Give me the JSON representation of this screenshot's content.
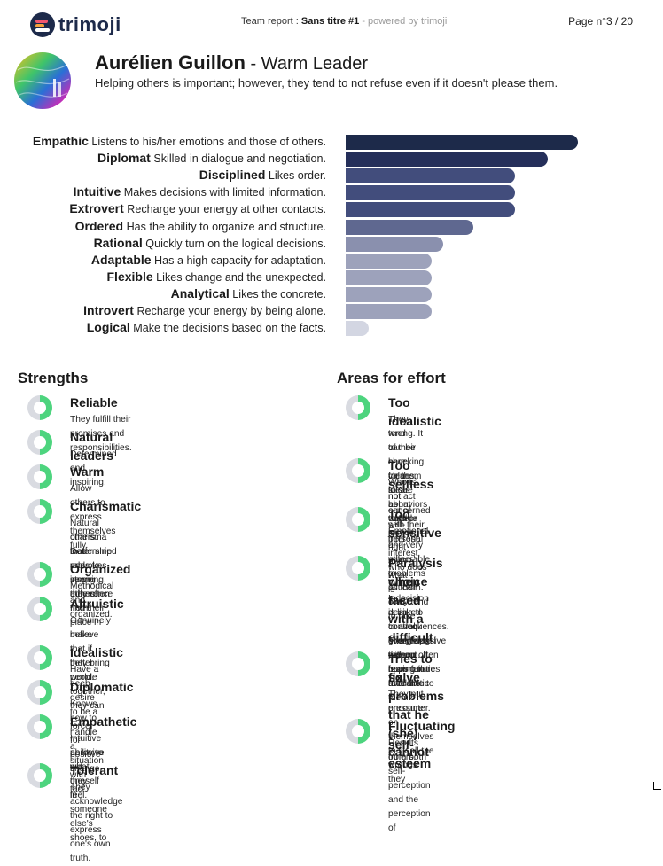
{
  "header": {
    "logo_text": "trimoji",
    "report_prefix": "Team report : ",
    "report_title": "Sans titre #1",
    "report_suffix": " - powered by trimoji",
    "page_number": "Page n°3 / 20"
  },
  "person": {
    "name": "Aurélien Guillon",
    "type": " - Warm Leader",
    "tagline": "Helping others is important; however, they tend to not refuse even if it doesn't please them."
  },
  "traits": [
    {
      "name": "Empathic",
      "desc": "Listens to his/her emotions and those of others.",
      "value": 100,
      "color": "#1d2a4a"
    },
    {
      "name": "Diplomat",
      "desc": "Skilled in dialogue and negotiation.",
      "value": 87,
      "color": "#252f5a"
    },
    {
      "name": "Disciplined",
      "desc": "Likes order.",
      "value": 73,
      "color": "#424d7c"
    },
    {
      "name": "Intuitive",
      "desc": "Makes decisions with limited information.",
      "value": 73,
      "color": "#424d7c"
    },
    {
      "name": "Extrovert",
      "desc": "Recharge your energy at other contacts.",
      "value": 73,
      "color": "#424d7c"
    },
    {
      "name": "Ordered",
      "desc": "Has the ability to organize and structure.",
      "value": 55,
      "color": "#5f6890"
    },
    {
      "name": "Rational",
      "desc": "Quickly turn on the logical decisions.",
      "value": 42,
      "color": "#8a90ae"
    },
    {
      "name": "Adaptable",
      "desc": "Has a high capacity for adaptation.",
      "value": 37,
      "color": "#9da2bb"
    },
    {
      "name": "Flexible",
      "desc": "Likes change and the unexpected.",
      "value": 37,
      "color": "#9da2bb"
    },
    {
      "name": "Analytical",
      "desc": "Likes the concrete.",
      "value": 37,
      "color": "#9da2bb"
    },
    {
      "name": "Introvert",
      "desc": "Recharge your energy by being alone.",
      "value": 37,
      "color": "#9da2bb"
    },
    {
      "name": "Logical",
      "desc": "Make the decisions based on the facts.",
      "value": 10,
      "color": "#d3d6e2"
    }
  ],
  "strengths": {
    "title": "Strengths",
    "items": [
      {
        "title": "Reliable",
        "desc": [
          "They fulfill their promises and responsibilities."
        ],
        "level": 0.5
      },
      {
        "title": "Natural leaders",
        "desc": [
          "Determined and inspiring."
        ],
        "level": 0.5
      },
      {
        "title": "Warm",
        "desc": [
          "Allow others to express themselves fully."
        ],
        "level": 0.5
      },
      {
        "title": "Charismatic",
        "desc": [
          "Natural charisma that provokes strong adherence from",
          "others. Determined and inspiring, they often find their place in",
          "leadership roles to serve others."
        ],
        "level": 0.5
      },
      {
        "title": "Organized",
        "desc": [
          "Methodical and organized."
        ],
        "level": 0.5
      },
      {
        "title": "Altruistic",
        "desc": [
          "Genuinely believe that if they bring people together, they can",
          "make a better world."
        ],
        "level": 0.5
      },
      {
        "title": "Idealistic",
        "desc": [
          "Have a deep desire to be a force for positive change."
        ],
        "level": 0.5
      },
      {
        "title": "Diplomatic",
        "desc": [
          "Knows how to handle a situation with tact."
        ],
        "level": 0.5
      },
      {
        "title": "Empathetic",
        "desc": [
          "Intuitive ability to put oneself in someone else's shoes, to",
          "perceive what they feel."
        ],
        "level": 0.5
      },
      {
        "title": "Tolerant",
        "desc": [
          "They acknowledge the right to express one's own truth."
        ],
        "level": 0.5
      }
    ]
  },
  "efforts": {
    "title": "Areas for effort",
    "items": [
      {
        "title": [
          "Too idealistic"
        ],
        "desc": [
          "They tend to have clear ideas about what is right and what is",
          "wrong. It can be shocking for them to see behaviors outside",
          "of their core values, such as truth or justice."
        ],
        "level": 0.5
      },
      {
        "title": [
          "Too selfless"
        ],
        "desc": [
          "Who is not concerned with their personal interest, who does",
          "not act out of self-interest."
        ],
        "level": 0.5
      },
      {
        "title": [
          "Too sensitive"
        ],
        "desc": [
          "Emotional and very vulnerable to criticism. They tend to take",
          "on others' problems as their own."
        ],
        "level": 0.5
      },
      {
        "title": [
          "Paralysis when faced with a difficult",
          "choice"
        ],
        "desc": [
          "Indecision is linked to a lack of self-esteem. It is an unrealistic",
          "desire to control everything without having to face the",
          "consequences. The indecisive person often fears failure and",
          "giving up all the opportunities available to them."
        ],
        "level": 0.5
      },
      {
        "title": [
          "Tries to fix problems that he (she) cannot",
          "solve"
        ],
        "desc": [
          "They put pressure on themselves to fix all the wrongs they",
          "encounter."
        ],
        "level": 0.5
      },
      {
        "title": [
          "Fluctuating self-esteem"
        ],
        "desc": [
          "Results from both self-perception and the perception of",
          "others."
        ],
        "level": 0.5
      }
    ]
  },
  "colors": {
    "donut_fill": "#4dd47e",
    "donut_track": "#d9dbe1",
    "brand": "#1d2a4a"
  }
}
